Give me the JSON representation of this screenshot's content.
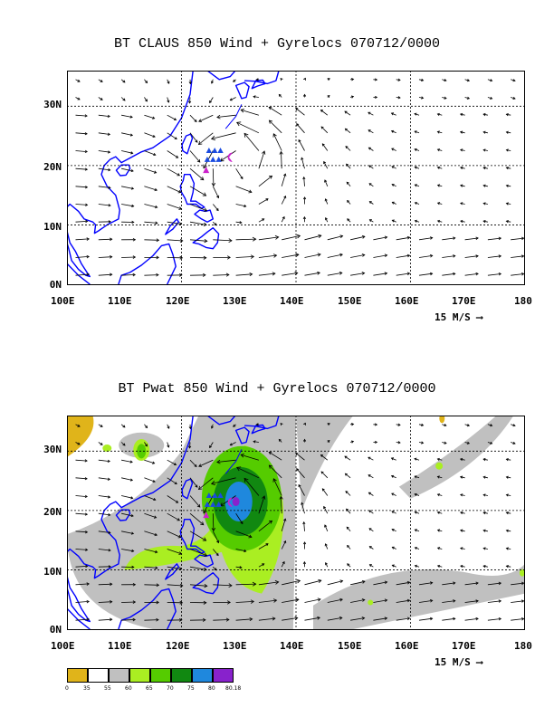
{
  "panel1": {
    "title": "BT CLAUS 850 Wind + Gyrelocs 070712/0000",
    "reference_label": "15 M/S"
  },
  "panel2": {
    "title": "BT Pwat 850 Wind + Gyrelocs 070712/0000",
    "reference_label": "15 M/S"
  },
  "axes": {
    "x_ticks": [
      "100E",
      "110E",
      "120E",
      "130E",
      "140E",
      "150E",
      "160E",
      "170E",
      "180"
    ],
    "y_ticks": [
      "0N",
      "10N",
      "20N",
      "30N"
    ]
  },
  "legend": {
    "labels": [
      "0",
      "35",
      "55",
      "60",
      "65",
      "70",
      "75",
      "80",
      "80.18"
    ],
    "colors": [
      "#e0b41a",
      "#ffffff",
      "#c0c0c0",
      "#aaee22",
      "#55cc00",
      "#118811",
      "#1f88dd",
      "#8822cc"
    ]
  },
  "colors": {
    "coast": "#0000ff",
    "gyre_marker": "#cc22cc",
    "triangle": "#1a4be0"
  }
}
